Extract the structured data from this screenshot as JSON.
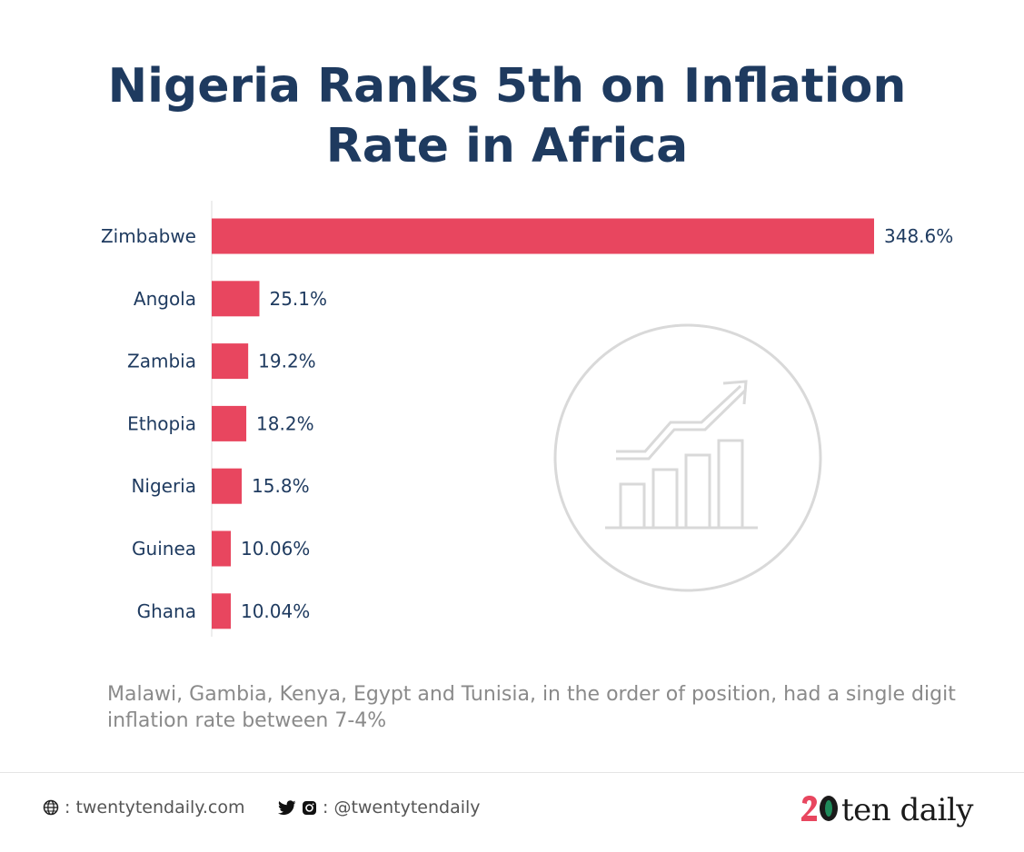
{
  "title": {
    "line1": "Nigeria Ranks 5th on Inflation",
    "line2": "Rate in Africa"
  },
  "chart_data": {
    "type": "bar",
    "orientation": "horizontal",
    "categories": [
      "Zimbabwe",
      "Angola",
      "Zambia",
      "Ethopia",
      "Nigeria",
      "Guinea",
      "Ghana"
    ],
    "values": [
      348.6,
      25.1,
      19.2,
      18.2,
      15.8,
      10.06,
      10.04
    ],
    "value_labels": [
      "348.6%",
      "25.1%",
      "19.2%",
      "18.2%",
      "15.8%",
      "10.06%",
      "10.04%"
    ],
    "bar_color": "#e8465f",
    "label_color": "#1e3a5f",
    "note": "Malawi, Gambia, Kenya, Egypt and Tunisia, in the order of position, had a single digit inflation rate between 7-4%"
  },
  "decoration": {
    "icon": "growth-chart-icon"
  },
  "footer": {
    "website": ": twentytendaily.com",
    "website_icon": "globe-icon",
    "social": ": @twentytendaily",
    "social_icons": [
      "twitter-icon",
      "instagram-icon"
    ],
    "logo_text": "ten daily",
    "logo_mark": "20"
  },
  "colors": {
    "title": "#1e3a5f",
    "bar": "#e8465f",
    "note": "#8a8a8a",
    "logo_accent": "#e8465f",
    "logo_green": "#1f8a5a"
  }
}
